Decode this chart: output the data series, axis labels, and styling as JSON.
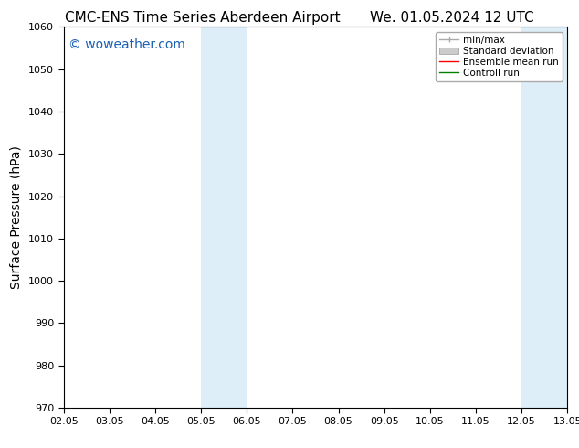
{
  "title_left": "CMC-ENS Time Series Aberdeen Airport",
  "title_right": "We. 01.05.2024 12 UTC",
  "ylabel": "Surface Pressure (hPa)",
  "ylim": [
    970,
    1060
  ],
  "yticks": [
    970,
    980,
    990,
    1000,
    1010,
    1020,
    1030,
    1040,
    1050,
    1060
  ],
  "xtick_labels": [
    "02.05",
    "03.05",
    "04.05",
    "05.05",
    "06.05",
    "07.05",
    "08.05",
    "09.05",
    "10.05",
    "11.05",
    "12.05",
    "13.05"
  ],
  "xtick_positions": [
    0,
    1,
    2,
    3,
    4,
    5,
    6,
    7,
    8,
    9,
    10,
    11
  ],
  "shaded_bands": [
    {
      "x_start": 3,
      "x_end": 4,
      "color": "#ddeef8"
    },
    {
      "x_start": 10,
      "x_end": 11,
      "color": "#ddeef8"
    }
  ],
  "watermark_text": "© woweather.com",
  "watermark_color": "#1a5fb4",
  "watermark_fontsize": 10,
  "background_color": "#ffffff",
  "legend_items": [
    {
      "label": "min/max",
      "color": "#aaaaaa",
      "linestyle": "-",
      "linewidth": 1.0,
      "type": "line_with_caps"
    },
    {
      "label": "Standard deviation",
      "color": "#cccccc",
      "linestyle": "-",
      "linewidth": 6,
      "type": "band"
    },
    {
      "label": "Ensemble mean run",
      "color": "#ff0000",
      "linestyle": "-",
      "linewidth": 1.0,
      "type": "line"
    },
    {
      "label": "Controll run",
      "color": "#008000",
      "linestyle": "-",
      "linewidth": 1.0,
      "type": "line"
    }
  ],
  "title_fontsize": 11,
  "axis_label_fontsize": 10,
  "tick_fontsize": 8,
  "legend_fontsize": 7.5,
  "font_family": "DejaVu Sans"
}
